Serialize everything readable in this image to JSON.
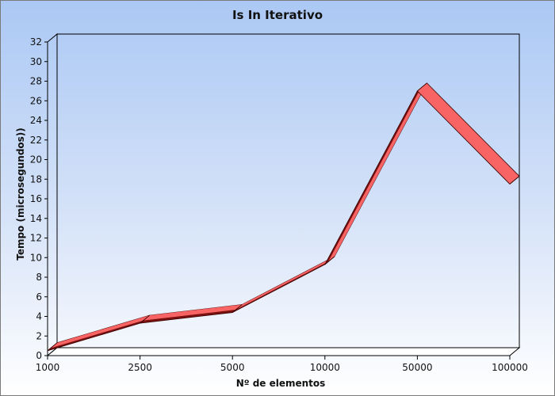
{
  "chart_data": {
    "type": "line",
    "title": "Is In Iterativo",
    "xlabel": "Nº de elementos",
    "ylabel": "Tempo (microsegundos))",
    "categories": [
      "1000",
      "2500",
      "5000",
      "10000",
      "50000",
      "100000"
    ],
    "series": [
      {
        "values": [
          0.5,
          3.3,
          4.4,
          9.3,
          27.0,
          17.5
        ]
      }
    ],
    "ylim": [
      0,
      32
    ],
    "yticks": [
      "0",
      "2",
      "4",
      "6",
      "8",
      "10",
      "12",
      "14",
      "16",
      "18",
      "20",
      "22",
      "24",
      "26",
      "28",
      "30",
      "32"
    ],
    "grid": false,
    "style": "3d",
    "colors": {
      "line": "#f86464",
      "line_dark": "#7a1010",
      "floor": "#ffffff"
    }
  }
}
